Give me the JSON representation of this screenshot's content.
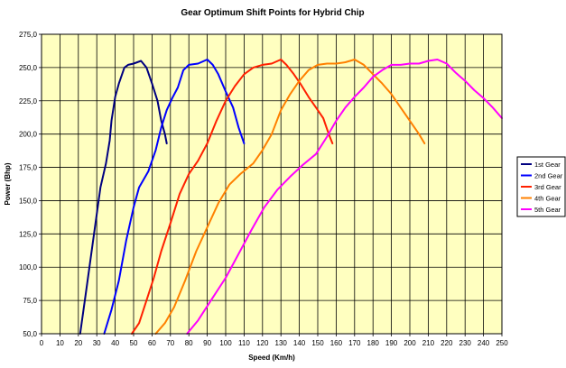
{
  "chart_data": {
    "type": "line",
    "title": "Gear Optimum Shift Points for Hybrid Chip",
    "xlabel": "Speed (Km/h)",
    "ylabel": "Power (Bhp)",
    "xlim": [
      0,
      250
    ],
    "ylim": [
      50,
      275
    ],
    "x_ticks": [
      0,
      10,
      20,
      30,
      40,
      50,
      60,
      70,
      80,
      90,
      100,
      110,
      120,
      130,
      140,
      150,
      160,
      170,
      180,
      190,
      200,
      210,
      220,
      230,
      240,
      250
    ],
    "y_ticks": [
      "50,0",
      "75,0",
      "100,0",
      "125,0",
      "150,0",
      "175,0",
      "200,0",
      "225,0",
      "250,0",
      "275,0"
    ],
    "y_tick_values": [
      50,
      75,
      100,
      125,
      150,
      175,
      200,
      225,
      250,
      275
    ],
    "grid": true,
    "plot_background": "#ffffc0",
    "legend_position": "right",
    "series": [
      {
        "name": "1st Gear",
        "color": "#000080",
        "points": [
          [
            21,
            50
          ],
          [
            24,
            80
          ],
          [
            27,
            110
          ],
          [
            30,
            140
          ],
          [
            32,
            160
          ],
          [
            35,
            178
          ],
          [
            37,
            195
          ],
          [
            38,
            210
          ],
          [
            40,
            228
          ],
          [
            42,
            238
          ],
          [
            45,
            250
          ],
          [
            47,
            252
          ],
          [
            50,
            253
          ],
          [
            54,
            255
          ],
          [
            57,
            250
          ],
          [
            60,
            238
          ],
          [
            63,
            225
          ],
          [
            65,
            210
          ],
          [
            67,
            200
          ],
          [
            68,
            193
          ]
        ]
      },
      {
        "name": "2nd Gear",
        "color": "#0000ff",
        "points": [
          [
            34,
            50
          ],
          [
            38,
            68
          ],
          [
            42,
            90
          ],
          [
            46,
            120
          ],
          [
            50,
            145
          ],
          [
            53,
            160
          ],
          [
            58,
            172
          ],
          [
            62,
            188
          ],
          [
            65,
            205
          ],
          [
            68,
            218
          ],
          [
            71,
            227
          ],
          [
            74,
            235
          ],
          [
            77,
            248
          ],
          [
            80,
            252
          ],
          [
            85,
            253
          ],
          [
            90,
            256
          ],
          [
            93,
            252
          ],
          [
            96,
            245
          ],
          [
            100,
            232
          ],
          [
            104,
            220
          ],
          [
            107,
            205
          ],
          [
            110,
            193
          ]
        ]
      },
      {
        "name": "3rd Gear",
        "color": "#ff2000",
        "points": [
          [
            49,
            50
          ],
          [
            53,
            58
          ],
          [
            57,
            75
          ],
          [
            61,
            92
          ],
          [
            65,
            112
          ],
          [
            70,
            133
          ],
          [
            75,
            155
          ],
          [
            80,
            170
          ],
          [
            85,
            180
          ],
          [
            90,
            193
          ],
          [
            95,
            210
          ],
          [
            100,
            225
          ],
          [
            105,
            236
          ],
          [
            110,
            245
          ],
          [
            115,
            250
          ],
          [
            120,
            252
          ],
          [
            125,
            253
          ],
          [
            130,
            256
          ],
          [
            133,
            252
          ],
          [
            137,
            245
          ],
          [
            141,
            237
          ],
          [
            145,
            228
          ],
          [
            149,
            220
          ],
          [
            153,
            212
          ],
          [
            156,
            200
          ],
          [
            158,
            193
          ]
        ]
      },
      {
        "name": "4th Gear",
        "color": "#ff8000",
        "points": [
          [
            62,
            50
          ],
          [
            67,
            58
          ],
          [
            72,
            70
          ],
          [
            78,
            90
          ],
          [
            84,
            112
          ],
          [
            90,
            130
          ],
          [
            96,
            148
          ],
          [
            102,
            162
          ],
          [
            108,
            170
          ],
          [
            115,
            178
          ],
          [
            120,
            188
          ],
          [
            125,
            200
          ],
          [
            130,
            218
          ],
          [
            135,
            230
          ],
          [
            140,
            240
          ],
          [
            145,
            248
          ],
          [
            150,
            252
          ],
          [
            155,
            253
          ],
          [
            160,
            253
          ],
          [
            165,
            254
          ],
          [
            170,
            256
          ],
          [
            175,
            252
          ],
          [
            180,
            245
          ],
          [
            185,
            238
          ],
          [
            190,
            230
          ],
          [
            195,
            220
          ],
          [
            200,
            210
          ],
          [
            205,
            200
          ],
          [
            208,
            193
          ]
        ]
      },
      {
        "name": "5th Gear",
        "color": "#ff00ff",
        "points": [
          [
            79,
            50
          ],
          [
            85,
            60
          ],
          [
            92,
            75
          ],
          [
            100,
            92
          ],
          [
            107,
            110
          ],
          [
            114,
            128
          ],
          [
            121,
            145
          ],
          [
            128,
            158
          ],
          [
            135,
            168
          ],
          [
            142,
            177
          ],
          [
            149,
            185
          ],
          [
            155,
            198
          ],
          [
            160,
            210
          ],
          [
            165,
            220
          ],
          [
            170,
            228
          ],
          [
            175,
            235
          ],
          [
            180,
            243
          ],
          [
            185,
            248
          ],
          [
            190,
            252
          ],
          [
            195,
            252
          ],
          [
            200,
            253
          ],
          [
            205,
            253
          ],
          [
            210,
            255
          ],
          [
            215,
            256
          ],
          [
            220,
            253
          ],
          [
            225,
            246
          ],
          [
            230,
            240
          ],
          [
            235,
            233
          ],
          [
            240,
            227
          ],
          [
            245,
            220
          ],
          [
            250,
            212
          ]
        ]
      }
    ]
  }
}
